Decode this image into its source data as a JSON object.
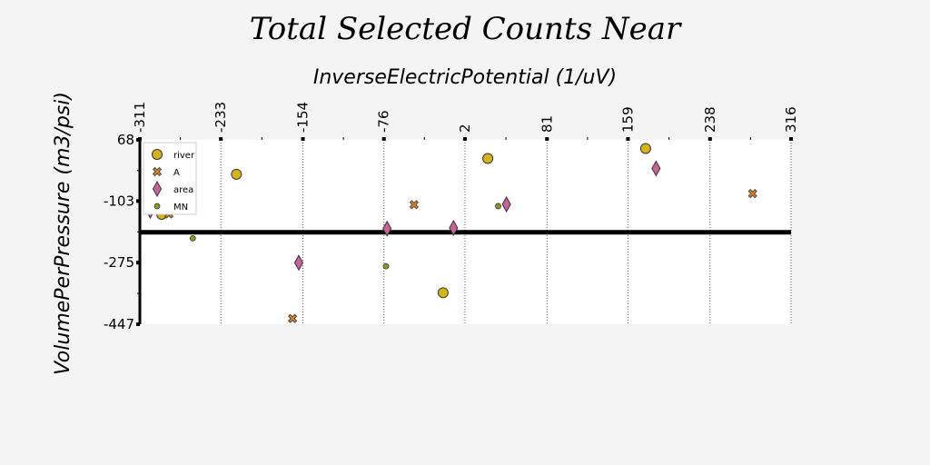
{
  "chart_data": {
    "type": "scatter",
    "title": "Total Selected Counts Near",
    "xlabel": "InverseElectricPotential (1/uV)",
    "ylabel": "VolumePerPressure (m3/psi)",
    "xlim": [
      -311,
      316
    ],
    "ylim": [
      -447,
      68
    ],
    "x_ticks": [
      "-311",
      "-233",
      "-154",
      "-76",
      "2",
      "81",
      "159",
      "238",
      "316"
    ],
    "y_ticks": [
      "68",
      "-103",
      "-275",
      "-447"
    ],
    "x_axis_position": "top",
    "grid": "vertical dotted",
    "reference_line_y": -190,
    "legend_position": "top-left",
    "series": [
      {
        "name": "river",
        "marker": "circle",
        "color": "#d4b417",
        "points": [
          [
            -290,
            -140
          ],
          [
            -218,
            -28
          ],
          [
            24,
            16
          ],
          [
            -19,
            -359
          ],
          [
            176,
            44
          ]
        ]
      },
      {
        "name": "A",
        "marker": "x",
        "color": "#d9822b",
        "points": [
          [
            -283,
            -139
          ],
          [
            -164,
            -431
          ],
          [
            -47,
            -113
          ],
          [
            279,
            -82
          ]
        ]
      },
      {
        "name": "area",
        "marker": "diamond",
        "color": "#c8649a",
        "points": [
          [
            -301,
            -130
          ],
          [
            -158,
            -275
          ],
          [
            -73,
            -180
          ],
          [
            -9,
            -178
          ],
          [
            42,
            -112
          ],
          [
            186,
            -12
          ]
        ]
      },
      {
        "name": "MN",
        "marker": "small-circle",
        "color": "#8a9a24",
        "points": [
          [
            -260,
            -207
          ],
          [
            -74,
            -285
          ],
          [
            34,
            -117
          ]
        ]
      }
    ]
  }
}
